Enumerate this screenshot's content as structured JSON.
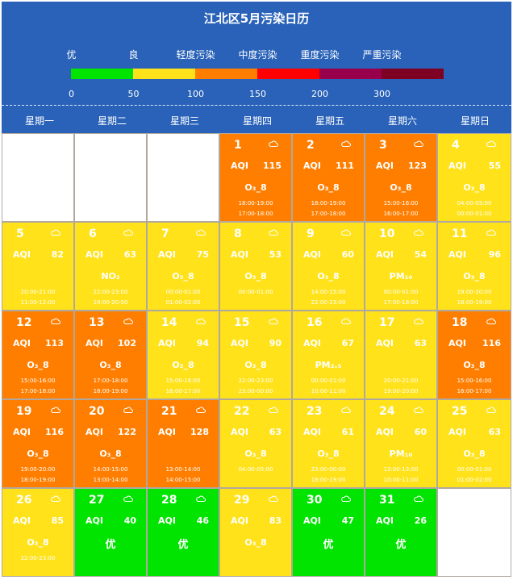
{
  "title": "江北区5月污染日历",
  "legend": {
    "labels": [
      "优",
      "良",
      "轻度污染",
      "中度污染",
      "重度污染",
      "严重污染"
    ],
    "colors": [
      "#00e400",
      "#ffe21a",
      "#ff7e00",
      "#ff0000",
      "#99004c",
      "#7e0023"
    ],
    "ticks": [
      "0",
      "50",
      "100",
      "150",
      "200",
      "300"
    ]
  },
  "weekdays": [
    "星期一",
    "星期二",
    "星期三",
    "星期四",
    "星期五",
    "星期六",
    "星期日"
  ],
  "aqi_label": "AQI",
  "first_weekday_offset": 3,
  "days": [
    {
      "d": "1",
      "aqi": "115",
      "level": 2,
      "pol": "O₃_8",
      "times": [
        "18:00-19:00",
        "17:00-18:00"
      ]
    },
    {
      "d": "2",
      "aqi": "111",
      "level": 2,
      "pol": "O₃_8",
      "times": [
        "18:00-19:00",
        "17:00-18:00"
      ]
    },
    {
      "d": "3",
      "aqi": "123",
      "level": 2,
      "pol": "O₃_8",
      "times": [
        "15:00-16:00",
        "16:00-17:00"
      ]
    },
    {
      "d": "4",
      "aqi": "55",
      "level": 1,
      "pol": "O₃_8",
      "times": [
        "04:00-05:00",
        "00:00-01:00"
      ]
    },
    {
      "d": "5",
      "aqi": "82",
      "level": 1,
      "pol": "",
      "times": [
        "20:00-21:00",
        "11:00-12:00"
      ]
    },
    {
      "d": "6",
      "aqi": "63",
      "level": 1,
      "pol": "NO₂",
      "times": [
        "22:00-23:00",
        "19:00-20:00"
      ]
    },
    {
      "d": "7",
      "aqi": "75",
      "level": 1,
      "pol": "O₃_8",
      "times": [
        "00:00-01:00",
        "01:00-02:00"
      ]
    },
    {
      "d": "8",
      "aqi": "53",
      "level": 1,
      "pol": "O₃_8",
      "times": [
        "00:00-01:00"
      ]
    },
    {
      "d": "9",
      "aqi": "60",
      "level": 1,
      "pol": "O₃_8",
      "times": [
        "14:00-15:00",
        "22:00-23:00"
      ]
    },
    {
      "d": "10",
      "aqi": "54",
      "level": 1,
      "pol": "PM₁₀",
      "times": [
        "00:00-01:00",
        "17:00-18:00"
      ]
    },
    {
      "d": "11",
      "aqi": "96",
      "level": 1,
      "pol": "O₃_8",
      "times": [
        "19:00-20:00",
        "18:00-19:00"
      ]
    },
    {
      "d": "12",
      "aqi": "113",
      "level": 2,
      "pol": "O₃_8",
      "times": [
        "15:00-16:00",
        "17:00-18:00"
      ]
    },
    {
      "d": "13",
      "aqi": "102",
      "level": 2,
      "pol": "O₃_8",
      "times": [
        "17:00-18:00",
        "18:00-19:00"
      ]
    },
    {
      "d": "14",
      "aqi": "94",
      "level": 1,
      "pol": "O₃_8",
      "times": [
        "15:00-16:00",
        "16:00-17:00"
      ]
    },
    {
      "d": "15",
      "aqi": "90",
      "level": 1,
      "pol": "O₃_8",
      "times": [
        "22:00-23:00",
        "23:00-00:00"
      ]
    },
    {
      "d": "16",
      "aqi": "67",
      "level": 1,
      "pol": "PM₂.₅",
      "times": [
        "00:00-01:00",
        "10:00-11:00"
      ]
    },
    {
      "d": "17",
      "aqi": "63",
      "level": 1,
      "pol": "",
      "times": [
        "20:00-21:00",
        "19:00-20:00"
      ]
    },
    {
      "d": "18",
      "aqi": "116",
      "level": 2,
      "pol": "O₃_8",
      "times": [
        "15:00-16:00",
        "16:00-17:00"
      ]
    },
    {
      "d": "19",
      "aqi": "116",
      "level": 2,
      "pol": "O₃_8",
      "times": [
        "19:00-20:00",
        "18:00-19:00"
      ]
    },
    {
      "d": "20",
      "aqi": "122",
      "level": 2,
      "pol": "O₃_8",
      "times": [
        "14:00-15:00",
        "13:00-14:00"
      ]
    },
    {
      "d": "21",
      "aqi": "128",
      "level": 2,
      "pol": "",
      "times": [
        "13:00-14:00",
        "14:00-15:00"
      ]
    },
    {
      "d": "22",
      "aqi": "63",
      "level": 1,
      "pol": "O₃_8",
      "times": [
        "04:00-05:00"
      ]
    },
    {
      "d": "23",
      "aqi": "61",
      "level": 1,
      "pol": "O₃_8",
      "times": [
        "23:00-00:00",
        "18:00-19:00"
      ]
    },
    {
      "d": "24",
      "aqi": "60",
      "level": 1,
      "pol": "PM₁₀",
      "times": [
        "12:00-13:00",
        "10:00-11:00"
      ]
    },
    {
      "d": "25",
      "aqi": "63",
      "level": 1,
      "pol": "O₃_8",
      "times": [
        "00:00-01:00",
        "01:00-02:00"
      ]
    },
    {
      "d": "26",
      "aqi": "85",
      "level": 1,
      "pol": "O₃_8",
      "times": [
        "22:00-23:00"
      ]
    },
    {
      "d": "27",
      "aqi": "40",
      "level": 0,
      "pol": "优",
      "times": []
    },
    {
      "d": "28",
      "aqi": "46",
      "level": 0,
      "pol": "优",
      "times": []
    },
    {
      "d": "29",
      "aqi": "83",
      "level": 1,
      "pol": "O₃_8",
      "times": []
    },
    {
      "d": "30",
      "aqi": "47",
      "level": 0,
      "pol": "优",
      "times": []
    },
    {
      "d": "31",
      "aqi": "26",
      "level": 0,
      "pol": "优",
      "times": []
    }
  ],
  "weather_icon": "cloud-icon"
}
